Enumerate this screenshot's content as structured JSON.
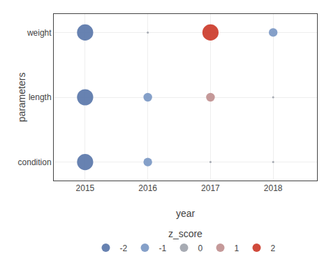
{
  "chart_data": {
    "type": "scatter",
    "xlabel": "year",
    "ylabel": "parameters",
    "categories": [
      "condition",
      "length",
      "weight"
    ],
    "xlim": [
      2014.5,
      2018.7
    ],
    "xticks": [
      2015,
      2016,
      2017,
      2018
    ],
    "grid": true,
    "legend": "bottom",
    "legend_title": "z_score",
    "series": [
      {
        "name": "-2",
        "color": "#5a77aa",
        "x": [
          2015,
          2015,
          2015
        ],
        "y": [
          "weight",
          "length",
          "condition"
        ],
        "z_score": [
          -2,
          -2,
          -2
        ]
      },
      {
        "name": "-1",
        "color": "#7b98c4",
        "x": [
          2018,
          2016,
          2016
        ],
        "y": [
          "weight",
          "length",
          "condition"
        ],
        "z_score": [
          -1,
          -1,
          -1
        ]
      },
      {
        "name": "0",
        "color": "#a0a4ac",
        "x": [
          2016,
          2018,
          2017,
          2018
        ],
        "y": [
          "weight",
          "length",
          "condition",
          "condition"
        ],
        "z_score": [
          0.05,
          0,
          0,
          0
        ]
      },
      {
        "name": "1",
        "color": "#c09090",
        "x": [
          2017
        ],
        "y": [
          "length"
        ],
        "z_score": [
          1
        ]
      },
      {
        "name": "2",
        "color": "#cc3b2a",
        "x": [
          2017
        ],
        "y": [
          "weight"
        ],
        "z_score": [
          2
        ]
      }
    ]
  }
}
